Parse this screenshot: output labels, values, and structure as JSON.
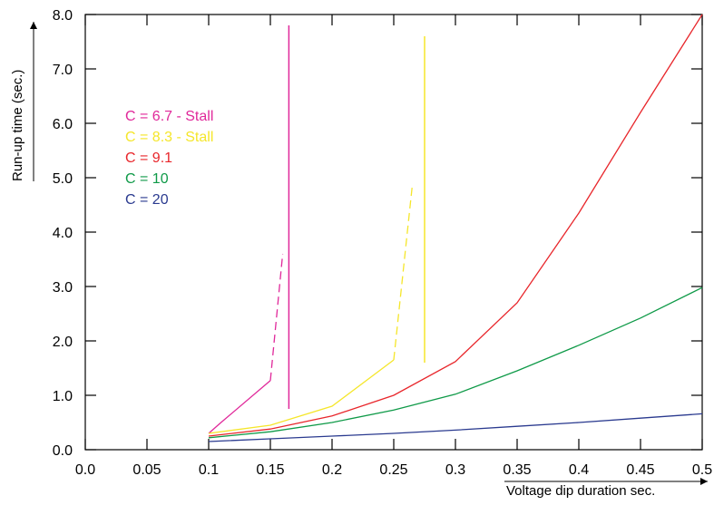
{
  "chart_data": {
    "type": "line",
    "title": "",
    "xlabel": "Voltage dip duration sec.",
    "ylabel": "Run-up time (sec.)",
    "xlim": [
      0.0,
      0.5
    ],
    "ylim": [
      0.0,
      8.0
    ],
    "x_ticks": [
      "0.0",
      "0.05",
      "0.1",
      "0.15",
      "0.2",
      "0.25",
      "0.3",
      "0.35",
      "0.4",
      "0.45",
      "0.5"
    ],
    "y_ticks": [
      "0.0",
      "1.0",
      "2.0",
      "3.0",
      "4.0",
      "5.0",
      "6.0",
      "7.0",
      "8.0"
    ],
    "grid": false,
    "legend_position": "top-left",
    "series": [
      {
        "name": "C = 6.7 - Stall",
        "color": "#e0289a",
        "points": [
          [
            0.1,
            0.3
          ],
          [
            0.11,
            0.5
          ],
          [
            0.15,
            1.27
          ]
        ],
        "dashed_points": [
          [
            0.15,
            1.27
          ],
          [
            0.16,
            3.6
          ]
        ],
        "vertical_line": {
          "x": 0.165,
          "y_from": 0.75,
          "y_to": 7.8
        }
      },
      {
        "name": "C = 8.3 - Stall",
        "color": "#f5e62a",
        "points": [
          [
            0.1,
            0.3
          ],
          [
            0.15,
            0.45
          ],
          [
            0.2,
            0.8
          ],
          [
            0.25,
            1.65
          ]
        ],
        "dashed_points": [
          [
            0.25,
            1.65
          ],
          [
            0.265,
            4.85
          ]
        ],
        "vertical_line": {
          "x": 0.275,
          "y_from": 1.6,
          "y_to": 7.6
        }
      },
      {
        "name": "C = 9.1",
        "color": "#e8262b",
        "points": [
          [
            0.1,
            0.25
          ],
          [
            0.15,
            0.38
          ],
          [
            0.2,
            0.62
          ],
          [
            0.25,
            1.0
          ],
          [
            0.3,
            1.62
          ],
          [
            0.35,
            2.7
          ],
          [
            0.4,
            4.35
          ],
          [
            0.45,
            6.2
          ],
          [
            0.5,
            8.0
          ]
        ]
      },
      {
        "name": "C = 10",
        "color": "#0f9a48",
        "points": [
          [
            0.1,
            0.22
          ],
          [
            0.15,
            0.33
          ],
          [
            0.2,
            0.5
          ],
          [
            0.25,
            0.73
          ],
          [
            0.3,
            1.02
          ],
          [
            0.35,
            1.45
          ],
          [
            0.4,
            1.92
          ],
          [
            0.45,
            2.42
          ],
          [
            0.5,
            2.98
          ]
        ]
      },
      {
        "name": "C = 20",
        "color": "#2a3a8f",
        "points": [
          [
            0.1,
            0.15
          ],
          [
            0.15,
            0.2
          ],
          [
            0.2,
            0.25
          ],
          [
            0.25,
            0.3
          ],
          [
            0.3,
            0.36
          ],
          [
            0.35,
            0.43
          ],
          [
            0.4,
            0.5
          ],
          [
            0.45,
            0.58
          ],
          [
            0.5,
            0.66
          ]
        ]
      }
    ]
  }
}
